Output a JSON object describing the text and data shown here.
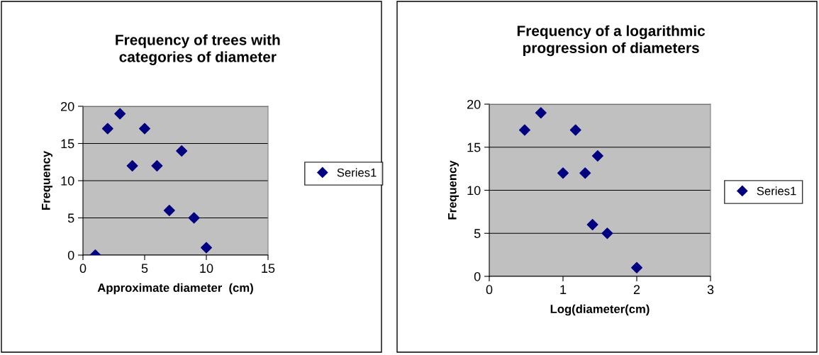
{
  "chart_data": [
    {
      "type": "scatter",
      "title": "Frequency of trees with\ncategories of diameter",
      "xlabel": "Approximate diameter  (cm)",
      "ylabel": "Frequency",
      "x": [
        1,
        2,
        3,
        4,
        5,
        6,
        7,
        8,
        9,
        10
      ],
      "series": [
        {
          "name": "Series1",
          "color": "#000080",
          "values": [
            0,
            17,
            19,
            12,
            17,
            12,
            6,
            14,
            5,
            1
          ]
        }
      ],
      "xlim": [
        0,
        15
      ],
      "xticks": [
        0,
        5,
        10,
        15
      ],
      "ylim": [
        0,
        20
      ],
      "yticks": [
        0,
        5,
        10,
        15,
        20
      ],
      "grid": "y",
      "legend": "right",
      "marker": "diamond"
    },
    {
      "type": "scatter",
      "title": "Frequency of a logarithmic\nprogression of diameters",
      "xlabel": "Log(diameter(cm)",
      "ylabel": "Frequency",
      "x": [
        0.48,
        0.7,
        1.0,
        1.17,
        1.3,
        1.4,
        1.47,
        1.6,
        2.0
      ],
      "series": [
        {
          "name": "Series1",
          "color": "#000080",
          "values": [
            17,
            19,
            12,
            17,
            12,
            6,
            14,
            5,
            1
          ]
        }
      ],
      "xlim": [
        0,
        3
      ],
      "xticks": [
        0,
        1,
        2,
        3
      ],
      "ylim": [
        0,
        20
      ],
      "yticks": [
        0,
        5,
        10,
        15,
        20
      ],
      "grid": "y",
      "legend": "right",
      "marker": "diamond"
    }
  ]
}
